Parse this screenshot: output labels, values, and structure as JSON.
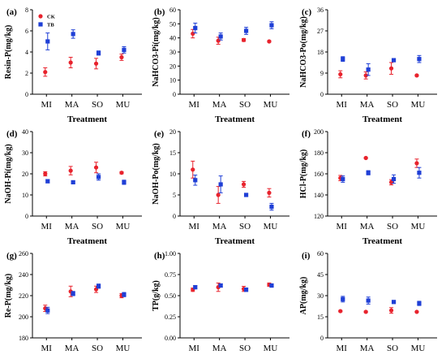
{
  "colors": {
    "ck": "#e8232d",
    "tb": "#1f3fd6",
    "axis": "#000000"
  },
  "chart_data": [
    {
      "type": "scatter",
      "panel": "(a)",
      "xlabel": "Treatment",
      "ylabel": "Resin-P(mg/kg)",
      "categories": [
        "MI",
        "MA",
        "SO",
        "MU"
      ],
      "ylim": [
        0,
        8
      ],
      "yticks": [
        0,
        2,
        4,
        6,
        8
      ],
      "legend": [
        {
          "marker": "circle",
          "label": "CK"
        },
        {
          "marker": "square",
          "label": "TB"
        }
      ],
      "series": [
        {
          "name": "CK",
          "values": [
            2.1,
            3.0,
            2.9,
            3.5
          ],
          "errors": [
            0.4,
            0.5,
            0.5,
            0.3
          ]
        },
        {
          "name": "TB",
          "values": [
            5.0,
            5.7,
            3.9,
            4.2
          ],
          "errors": [
            0.8,
            0.4,
            0.2,
            0.3
          ]
        }
      ]
    },
    {
      "type": "scatter",
      "panel": "(b)",
      "xlabel": "Treatment",
      "ylabel": "NaHCO3-Pi(mg/kg)",
      "categories": [
        "MI",
        "MA",
        "SO",
        "MU"
      ],
      "ylim": [
        0,
        60
      ],
      "yticks": [
        0,
        10,
        20,
        30,
        40,
        50,
        60
      ],
      "series": [
        {
          "name": "CK",
          "values": [
            43,
            38,
            38.5,
            37.5
          ],
          "errors": [
            3,
            2.5,
            1,
            0.5
          ]
        },
        {
          "name": "TB",
          "values": [
            47,
            41,
            45,
            49
          ],
          "errors": [
            3.5,
            2.5,
            2.5,
            2.5
          ]
        }
      ]
    },
    {
      "type": "scatter",
      "panel": "(c)",
      "xlabel": "Treatment",
      "ylabel": "NaHCO3-Po(mg/kg)",
      "categories": [
        "MI",
        "MA",
        "SO",
        "MU"
      ],
      "ylim": [
        0,
        36
      ],
      "yticks": [
        0,
        9,
        18,
        27,
        36
      ],
      "series": [
        {
          "name": "CK",
          "values": [
            8.5,
            8,
            11,
            8
          ],
          "errors": [
            1.5,
            1.5,
            2.5,
            0.3
          ]
        },
        {
          "name": "TB",
          "values": [
            15,
            10.5,
            14.5,
            15
          ],
          "errors": [
            1,
            2.5,
            0.4,
            1.5
          ]
        }
      ]
    },
    {
      "type": "scatter",
      "panel": "(d)",
      "xlabel": "Treatment",
      "ylabel": "NaOH-Pi(mg/kg)",
      "categories": [
        "MI",
        "MA",
        "SO",
        "MU"
      ],
      "ylim": [
        0,
        40
      ],
      "yticks": [
        0,
        10,
        20,
        30,
        40
      ],
      "series": [
        {
          "name": "CK",
          "values": [
            20,
            21.5,
            23,
            20.5
          ],
          "errors": [
            1,
            2,
            2.5,
            0.5
          ]
        },
        {
          "name": "TB",
          "values": [
            16.5,
            16,
            18.5,
            16
          ],
          "errors": [
            0.8,
            0.5,
            1.5,
            1
          ]
        }
      ]
    },
    {
      "type": "scatter",
      "panel": "(e)",
      "xlabel": "Treatment",
      "ylabel": "NaOH-Po(mg/kg)",
      "categories": [
        "MI",
        "MA",
        "SO",
        "MU"
      ],
      "ylim": [
        0,
        20
      ],
      "yticks": [
        0,
        5,
        10,
        15,
        20
      ],
      "series": [
        {
          "name": "CK",
          "values": [
            11,
            5,
            7.5,
            5.5
          ],
          "errors": [
            2,
            2,
            0.7,
            1
          ]
        },
        {
          "name": "TB",
          "values": [
            8.5,
            7.5,
            5,
            2.2
          ],
          "errors": [
            1.2,
            2,
            0.3,
            0.8
          ]
        }
      ]
    },
    {
      "type": "scatter",
      "panel": "(f)",
      "xlabel": "Treatment",
      "ylabel": "HCl-P(mg/kg)",
      "categories": [
        "MI",
        "MA",
        "SO",
        "MU"
      ],
      "ylim": [
        120,
        200
      ],
      "yticks": [
        120,
        140,
        160,
        180,
        200
      ],
      "series": [
        {
          "name": "CK",
          "values": [
            156,
            175,
            152,
            170
          ],
          "errors": [
            2.5,
            0.5,
            2.5,
            4
          ]
        },
        {
          "name": "TB",
          "values": [
            155,
            161,
            155,
            161
          ],
          "errors": [
            3,
            2,
            4,
            5
          ]
        }
      ]
    },
    {
      "type": "scatter",
      "panel": "(g)",
      "xlabel": "Treatment",
      "ylabel": "Re-P(mg/kg)",
      "categories": [
        "MI",
        "MA",
        "SO",
        "MU"
      ],
      "ylim": [
        180,
        260
      ],
      "yticks": [
        180,
        200,
        220,
        240,
        260
      ],
      "series": [
        {
          "name": "CK",
          "values": [
            208,
            224,
            226,
            220
          ],
          "errors": [
            3,
            5,
            3,
            2
          ]
        },
        {
          "name": "TB",
          "values": [
            206,
            222,
            229,
            221
          ],
          "errors": [
            3,
            2,
            2,
            2
          ]
        }
      ]
    },
    {
      "type": "scatter",
      "panel": "(h)",
      "xlabel": "Treatment",
      "ylabel": "TP(g/kg)",
      "categories": [
        "MI",
        "MA",
        "SO",
        "MU"
      ],
      "ylim": [
        0,
        1
      ],
      "yticks": [
        0,
        0.25,
        0.5,
        0.75,
        1
      ],
      "ytick_labels": [
        "0.00",
        "0.25",
        "0.50",
        "0.75",
        "1.00"
      ],
      "series": [
        {
          "name": "CK",
          "values": [
            0.57,
            0.6,
            0.58,
            0.63
          ],
          "errors": [
            0.02,
            0.05,
            0.03,
            0.02
          ]
        },
        {
          "name": "TB",
          "values": [
            0.6,
            0.62,
            0.57,
            0.62
          ],
          "errors": [
            0.02,
            0.02,
            0.02,
            0.02
          ]
        }
      ]
    },
    {
      "type": "scatter",
      "panel": "(i)",
      "xlabel": "Treatment",
      "ylabel": "AP(mg/kg)",
      "categories": [
        "MI",
        "MA",
        "SO",
        "MU"
      ],
      "ylim": [
        0,
        60
      ],
      "yticks": [
        0,
        15,
        30,
        45,
        60
      ],
      "series": [
        {
          "name": "CK",
          "values": [
            19,
            18.5,
            19.5,
            18.5
          ],
          "errors": [
            0.5,
            0.5,
            2,
            0.3
          ]
        },
        {
          "name": "TB",
          "values": [
            27.5,
            26.5,
            25.5,
            24.5
          ],
          "errors": [
            2,
            2.5,
            0.5,
            1.5
          ]
        }
      ]
    }
  ]
}
